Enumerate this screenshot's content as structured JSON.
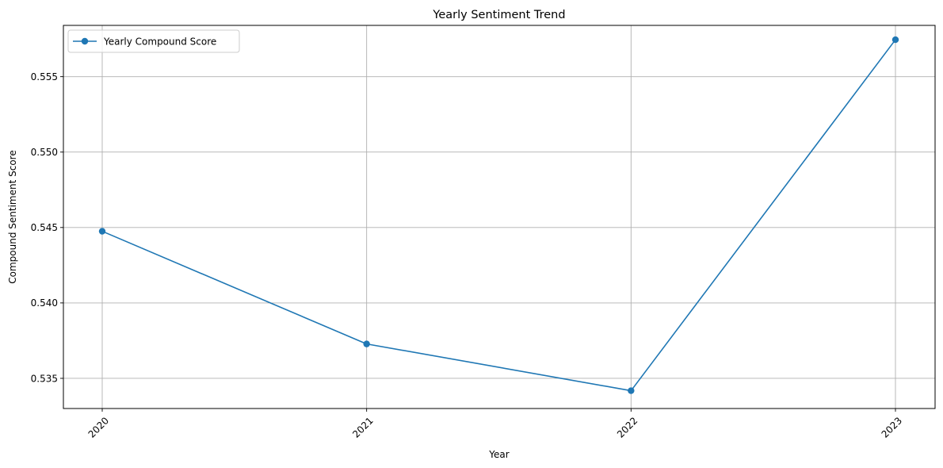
{
  "chart_data": {
    "type": "line",
    "title": "Yearly Sentiment Trend",
    "xlabel": "Year",
    "ylabel": "Compound Sentiment Score",
    "categories": [
      "2020",
      "2021",
      "2022",
      "2023"
    ],
    "series": [
      {
        "name": "Yearly Compound Score",
        "color": "#1f77b4",
        "marker": "circle",
        "values": [
          0.54475,
          0.53728,
          0.53418,
          0.55745
        ]
      }
    ],
    "ylim": [
      0.533,
      0.5584
    ],
    "yticks": [
      0.535,
      0.54,
      0.545,
      0.55,
      0.555
    ],
    "ytick_labels": [
      "0.535",
      "0.540",
      "0.545",
      "0.550",
      "0.555"
    ],
    "grid": true,
    "legend_position": "top-left",
    "x_tick_rotation": 45
  }
}
